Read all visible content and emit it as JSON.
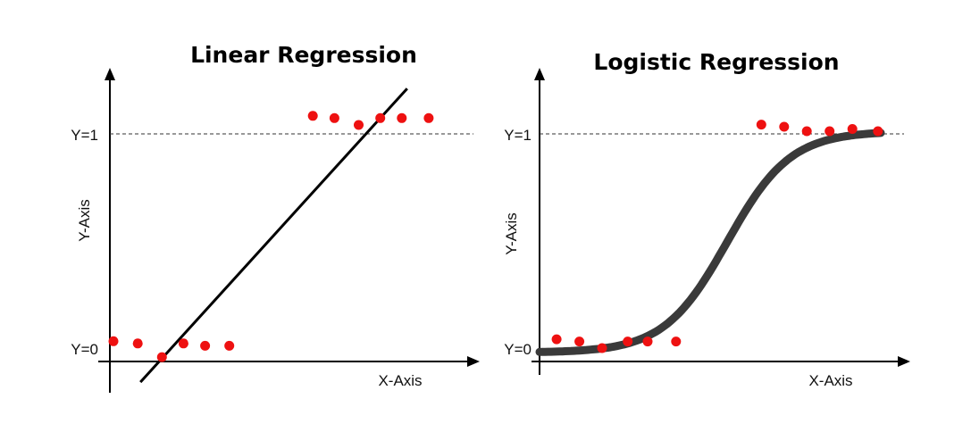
{
  "chart_data": [
    {
      "type": "scatter",
      "title": "Linear Regression",
      "xlabel": "X-Axis",
      "ylabel": "Y-Axis",
      "ytick_labels": [
        "Y=0",
        "Y=1"
      ],
      "reference_line": "dashed at Y=1",
      "points_color": "#ee1111",
      "line_color": "#000000",
      "points": {
        "x": [
          0.0,
          0.9,
          1.8,
          2.6,
          3.4,
          4.3,
          7.4,
          8.2,
          9.1,
          9.9,
          10.7,
          11.7
        ],
        "y": [
          0.05,
          0.04,
          -0.02,
          0.04,
          0.03,
          0.03,
          1.04,
          1.03,
          1.0,
          1.03,
          1.03,
          1.03
        ]
      },
      "fit": {
        "kind": "linear",
        "x": [
          1.0,
          10.9
        ],
        "y": [
          -0.13,
          1.16
        ]
      }
    },
    {
      "type": "scatter",
      "title": "Logistic Regression",
      "xlabel": "X-Axis",
      "ylabel": "Y-Axis",
      "ytick_labels": [
        "Y=0",
        "Y=1"
      ],
      "reference_line": "dashed at Y=1",
      "points_color": "#ee1111",
      "line_color": "#3a3a3a",
      "points": {
        "x": [
          0.6,
          1.4,
          2.2,
          3.1,
          3.8,
          4.8,
          7.8,
          8.6,
          9.4,
          10.2,
          11.0,
          11.9
        ],
        "y": [
          0.06,
          0.05,
          0.02,
          0.05,
          0.05,
          0.05,
          1.03,
          1.02,
          1.0,
          1.0,
          1.01,
          1.0
        ]
      },
      "fit": {
        "kind": "logistic",
        "x_range": [
          0.0,
          12.0
        ],
        "midpoint": 6.6,
        "steepness": 0.9
      }
    }
  ]
}
